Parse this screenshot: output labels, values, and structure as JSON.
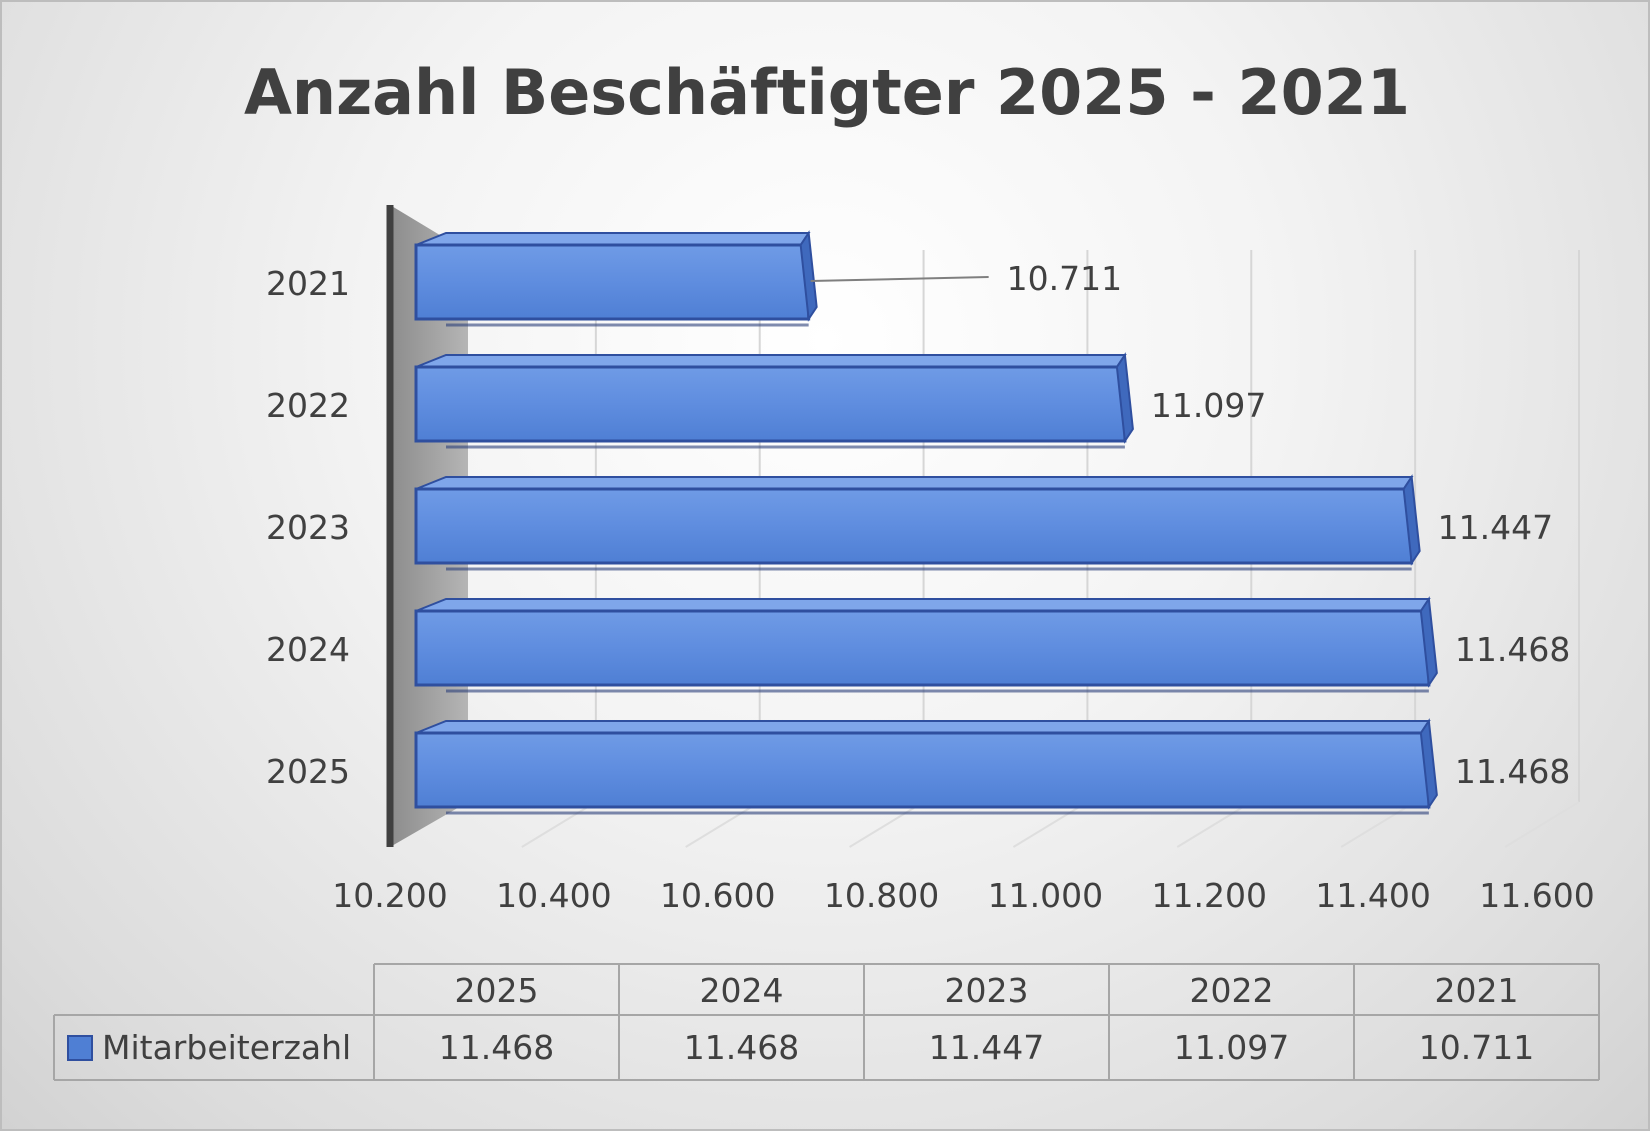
{
  "chart_data": {
    "type": "bar",
    "orientation": "horizontal",
    "title": "Anzahl Beschäftigter 2025 - 2021",
    "categories": [
      "2025",
      "2024",
      "2023",
      "2022",
      "2021"
    ],
    "series": [
      {
        "name": "Mitarbeiterzahl",
        "values": [
          11468,
          11468,
          11447,
          11097,
          10711
        ]
      }
    ],
    "value_labels": [
      "11.468",
      "11.468",
      "11.447",
      "11.097",
      "10.711"
    ],
    "xlim": [
      10200,
      11600
    ],
    "x_ticks": [
      10200,
      10400,
      10600,
      10800,
      11000,
      11200,
      11400,
      11600
    ],
    "x_tick_labels": [
      "10.200",
      "10.400",
      "10.600",
      "10.800",
      "11.000",
      "11.200",
      "11.400",
      "11.600"
    ],
    "grid": true,
    "legend": "data-table",
    "colors": {
      "bar": "#4f7fd4",
      "bar_border": "#2f4f9f"
    },
    "data_table": {
      "headers": [
        "2025",
        "2024",
        "2023",
        "2022",
        "2021"
      ],
      "row_label": "Mitarbeiterzahl",
      "values": [
        "11.468",
        "11.468",
        "11.447",
        "11.097",
        "10.711"
      ]
    }
  }
}
